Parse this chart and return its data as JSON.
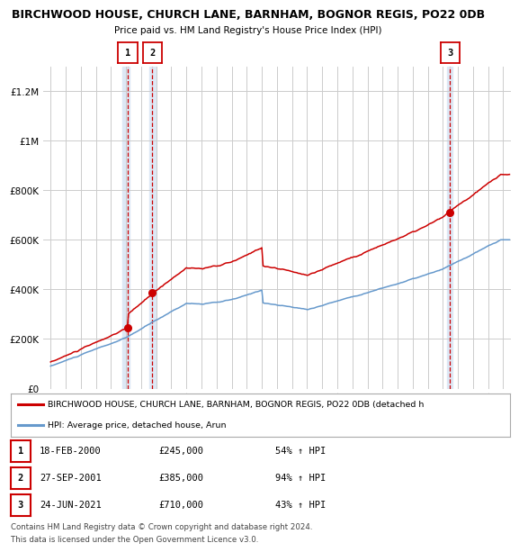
{
  "title": "BIRCHWOOD HOUSE, CHURCH LANE, BARNHAM, BOGNOR REGIS, PO22 0DB",
  "subtitle": "Price paid vs. HM Land Registry's House Price Index (HPI)",
  "legend_line1": "BIRCHWOOD HOUSE, CHURCH LANE, BARNHAM, BOGNOR REGIS, PO22 0DB (detached h",
  "legend_line2": "HPI: Average price, detached house, Arun",
  "footer1": "Contains HM Land Registry data © Crown copyright and database right 2024.",
  "footer2": "This data is licensed under the Open Government Licence v3.0.",
  "transactions": [
    {
      "label": "1",
      "date": "18-FEB-2000",
      "price": 245000,
      "pct": "54%",
      "dir": "↑",
      "x_year": 2000.12
    },
    {
      "label": "2",
      "date": "27-SEP-2001",
      "price": 385000,
      "pct": "94%",
      "dir": "↑",
      "x_year": 2001.75
    },
    {
      "label": "3",
      "date": "24-JUN-2021",
      "price": 710000,
      "pct": "43%",
      "dir": "↑",
      "x_year": 2021.48
    }
  ],
  "ylim": [
    0,
    1300000
  ],
  "xlim_start": 1994.5,
  "xlim_end": 2025.5,
  "red_color": "#cc0000",
  "blue_color": "#6699cc",
  "bg_color": "#ffffff",
  "grid_color": "#cccccc",
  "highlight_color": "#dde8f5"
}
